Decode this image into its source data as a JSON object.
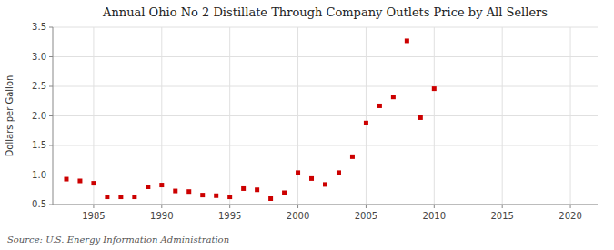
{
  "chart_data": {
    "type": "scatter",
    "title": "Annual Ohio No 2 Distillate Through Company Outlets Price by All Sellers",
    "ylabel": "Dollars per Gallon",
    "source": "Source: U.S. Energy Information Administration",
    "x": [
      1983,
      1984,
      1985,
      1986,
      1987,
      1988,
      1989,
      1990,
      1991,
      1992,
      1993,
      1994,
      1995,
      1996,
      1997,
      1998,
      1999,
      2000,
      2001,
      2002,
      2003,
      2004,
      2005,
      2006,
      2007,
      2008,
      2009,
      2010
    ],
    "values": [
      0.93,
      0.9,
      0.86,
      0.63,
      0.63,
      0.63,
      0.8,
      0.83,
      0.73,
      0.72,
      0.66,
      0.65,
      0.63,
      0.77,
      0.75,
      0.6,
      0.7,
      1.04,
      0.94,
      0.84,
      1.04,
      1.31,
      1.88,
      2.17,
      2.32,
      3.27,
      1.97,
      2.46
    ],
    "color": "#cc0000",
    "marker": "square",
    "xlim": [
      1982,
      2022
    ],
    "ylim": [
      0.5,
      3.5
    ],
    "xticks": [
      1985,
      1990,
      1995,
      2000,
      2005,
      2010,
      2015,
      2020
    ],
    "yticks": [
      0.5,
      {
        "value": 1.0,
        "label": "1.0"
      },
      1.5,
      {
        "value": 2.0,
        "label": "2.0"
      },
      2.5,
      {
        "value": 3.0,
        "label": "3.0"
      },
      3.5
    ],
    "grid": true
  }
}
